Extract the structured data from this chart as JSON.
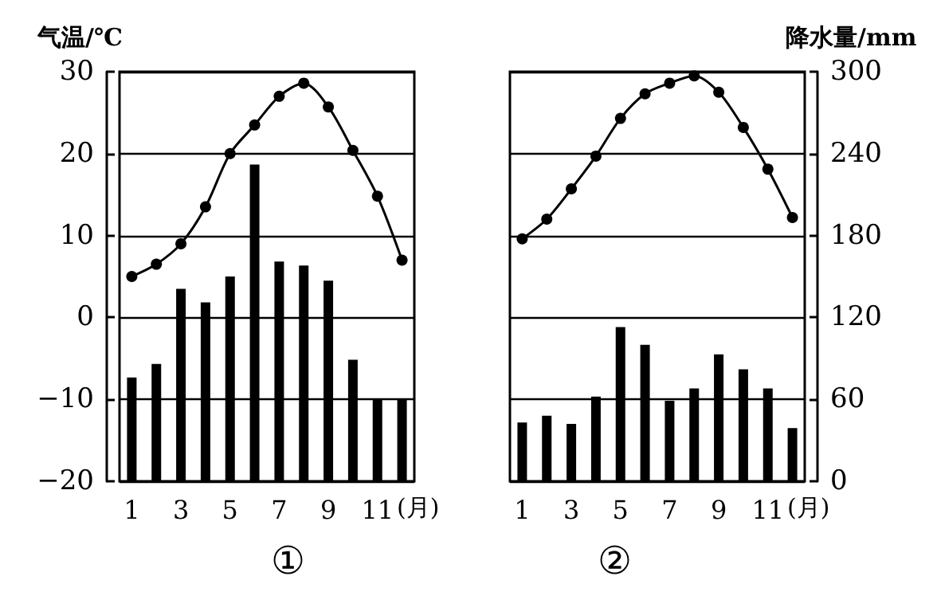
{
  "chart_data": [
    {
      "type": "bar",
      "ylabel": "气温/℃",
      "xlabel": "(月)",
      "categories": [
        "1",
        null,
        "3",
        null,
        "5",
        null,
        "7",
        null,
        "9",
        null,
        "11",
        null
      ],
      "ylim": [
        -20,
        30
      ],
      "yticks": [
        -20,
        -10,
        0,
        10,
        20,
        30
      ],
      "y2lim": [
        0,
        300
      ],
      "tick_labels": [
        "x",
        "y"
      ],
      "grid": "y",
      "annotations": [
        "①"
      ],
      "series": [
        {
          "axis": "y2",
          "color": "#000000",
          "values": [
            76,
            86,
            141,
            131,
            150,
            232,
            161,
            158,
            147,
            89,
            60,
            60
          ]
        },
        {
          "type": "line",
          "axis": "y",
          "color": "#000000",
          "marker": "circle",
          "values": [
            5,
            6.5,
            9,
            13.5,
            20,
            23.5,
            27,
            28.6,
            25.7,
            20.4,
            14.8,
            7
          ]
        }
      ]
    },
    {
      "type": "bar",
      "y2label": "降水量/mm",
      "xlabel": "(月)",
      "categories": [
        "1",
        null,
        "3",
        null,
        "5",
        null,
        "7",
        null,
        "9",
        null,
        "11",
        null
      ],
      "ylim": [
        -20,
        30
      ],
      "y2lim": [
        0,
        300
      ],
      "y2ticks": [
        0,
        60,
        120,
        180,
        240,
        300
      ],
      "tick_labels": [
        "x",
        "y2"
      ],
      "grid": "y",
      "annotations": [
        "②"
      ],
      "series": [
        {
          "axis": "y2",
          "color": "#000000",
          "values": [
            43,
            48,
            42,
            62,
            113,
            100,
            59,
            68,
            93,
            82,
            68,
            39
          ]
        },
        {
          "type": "line",
          "axis": "y",
          "color": "#000000",
          "marker": "circle",
          "values": [
            9.6,
            12,
            15.7,
            19.7,
            24.3,
            27.3,
            28.6,
            29.5,
            27.5,
            23.2,
            18.1,
            12.2
          ]
        }
      ]
    }
  ]
}
